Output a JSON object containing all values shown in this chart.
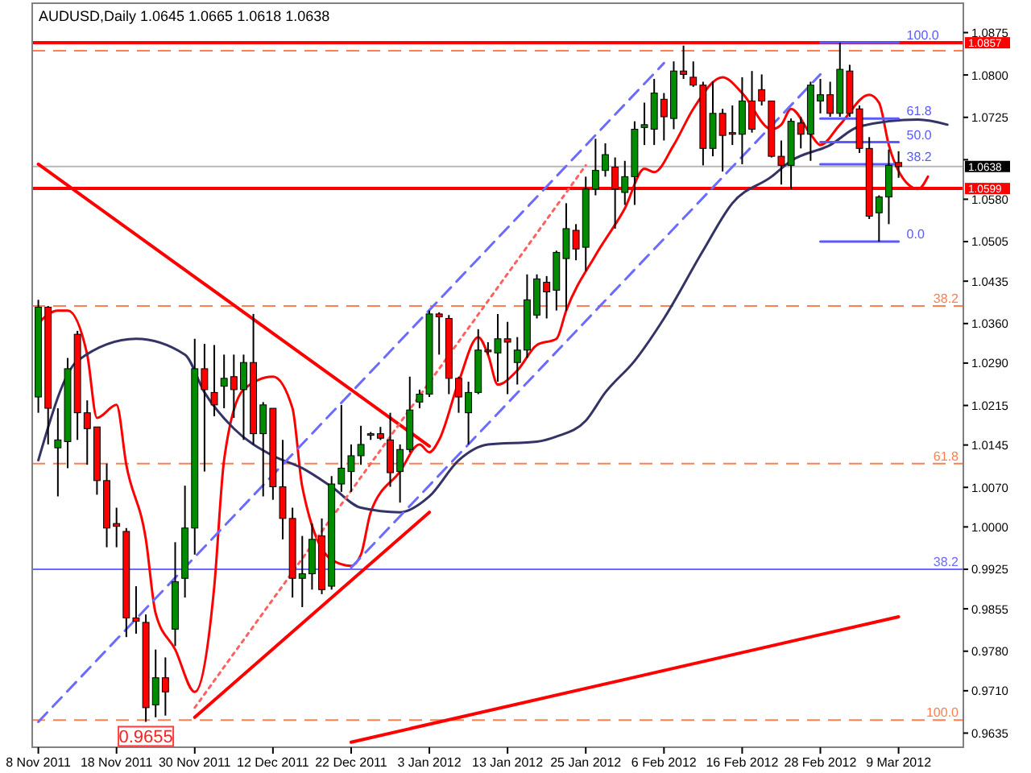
{
  "chart_data": {
    "type": "candlestick",
    "title": "AUDUSD,Daily  1.0645 1.0665 1.0618 1.0638",
    "categories": [
      "8 Nov 2011",
      null,
      null,
      null,
      null,
      null,
      null,
      null,
      "18 Nov 2011",
      null,
      null,
      null,
      null,
      null,
      null,
      null,
      "30 Nov 2011",
      null,
      null,
      null,
      null,
      null,
      null,
      null,
      "12 Dec 2011",
      null,
      null,
      null,
      null,
      null,
      null,
      null,
      "22 Dec 2011",
      null,
      null,
      null,
      null,
      null,
      null,
      null,
      "3 Jan 2012",
      null,
      null,
      null,
      null,
      null,
      null,
      null,
      "13 Jan 2012",
      null,
      null,
      null,
      null,
      null,
      null,
      null,
      "25 Jan 2012",
      null,
      null,
      null,
      null,
      null,
      null,
      null,
      "6 Feb 2012",
      null,
      null,
      null,
      null,
      null,
      null,
      null,
      "16 Feb 2012",
      null,
      null,
      null,
      null,
      null,
      null,
      null,
      "28 Feb 2012",
      null,
      null,
      null,
      null,
      null,
      null,
      null,
      "9 Mar 2012",
      null,
      null,
      null,
      null,
      null,
      null
    ],
    "ohlc": [
      [
        1.023,
        1.0402,
        1.0202,
        1.0389
      ],
      [
        1.0389,
        1.0391,
        1.0146,
        1.021
      ],
      [
        1.014,
        1.021,
        1.0054,
        1.0154
      ],
      [
        1.0151,
        1.0299,
        1.0104,
        1.028
      ],
      [
        1.0341,
        1.0347,
        1.0154,
        1.0202
      ],
      [
        1.0202,
        1.0224,
        1.011,
        1.0174
      ],
      [
        1.0177,
        1.0177,
        1.0057,
        1.0082
      ],
      [
        1.0082,
        1.0112,
        0.9964,
        0.9998
      ],
      [
        1.0006,
        1.0034,
        0.9964,
        1.0001
      ],
      [
        0.9992,
        0.9998,
        0.9805,
        0.9839
      ],
      [
        0.9839,
        0.9895,
        0.9811,
        0.9833
      ],
      [
        0.9831,
        0.9845,
        0.9655,
        0.968
      ],
      [
        0.9685,
        0.9783,
        0.9663,
        0.9733
      ],
      [
        0.9733,
        0.9769,
        0.9666,
        0.9708
      ],
      [
        0.9819,
        0.9973,
        0.9789,
        0.9903
      ],
      [
        0.9909,
        1.0073,
        0.9875,
        0.9998
      ],
      [
        0.9998,
        1.0333,
        0.9951,
        1.028
      ],
      [
        1.028,
        1.0324,
        1.0098,
        1.0243
      ],
      [
        1.0238,
        1.0322,
        1.0196,
        1.0216
      ],
      [
        1.0249,
        1.0305,
        1.021,
        1.0263
      ],
      [
        1.0266,
        1.0305,
        1.0193,
        1.0243
      ],
      [
        1.0243,
        1.0305,
        1.0154,
        1.0291
      ],
      [
        1.0291,
        1.0377,
        1.0146,
        1.0165
      ],
      [
        1.0165,
        1.0221,
        1.0054,
        1.0216
      ],
      [
        1.021,
        1.021,
        1.0048,
        1.0071
      ],
      [
        1.0071,
        1.0154,
        0.9978,
        1.0015
      ],
      [
        1.0015,
        1.0034,
        0.9875,
        0.9909
      ],
      [
        0.9909,
        0.9984,
        0.9858,
        0.9917
      ],
      [
        0.9917,
        1.0006,
        0.9889,
        0.9978
      ],
      [
        0.9984,
        1.0015,
        0.9881,
        0.9889
      ],
      [
        0.9895,
        1.009,
        0.9889,
        1.0076
      ],
      [
        1.0076,
        1.0216,
        1.0062,
        1.0104
      ],
      [
        1.0098,
        1.0146,
        1.0062,
        1.0126
      ],
      [
        1.0126,
        1.0179,
        1.011,
        1.0146
      ],
      [
        1.0163,
        1.0168,
        1.0154,
        1.0165
      ],
      [
        1.0165,
        1.0177,
        1.0154,
        1.0157
      ],
      [
        1.0154,
        1.0202,
        1.0071,
        1.0096
      ],
      [
        1.0098,
        1.0146,
        1.0043,
        1.0137
      ],
      [
        1.0137,
        1.0266,
        1.0132,
        1.0207
      ],
      [
        1.0221,
        1.0243,
        1.021,
        1.0235
      ],
      [
        1.0235,
        1.0383,
        1.023,
        1.0377
      ],
      [
        1.0377,
        1.038,
        1.0305,
        1.0372
      ],
      [
        1.0369,
        1.0375,
        1.0235,
        1.0263
      ],
      [
        1.0263,
        1.0266,
        1.0202,
        1.023
      ],
      [
        1.0202,
        1.0257,
        1.0146,
        1.0238
      ],
      [
        1.0238,
        1.035,
        1.0235,
        1.0313
      ],
      [
        1.0313,
        1.0327,
        1.0305,
        1.031
      ],
      [
        1.0308,
        1.0377,
        1.0257,
        1.0333
      ],
      [
        1.0333,
        1.0363,
        1.0235,
        1.0327
      ],
      [
        1.0291,
        1.0336,
        1.0252,
        1.0313
      ],
      [
        1.0313,
        1.0447,
        1.0299,
        1.0402
      ],
      [
        1.0375,
        1.0447,
        1.0369,
        1.0439
      ],
      [
        1.0433,
        1.0444,
        1.0369,
        1.0416
      ],
      [
        1.0419,
        1.0489,
        1.0383,
        1.0486
      ],
      [
        1.0475,
        1.0573,
        1.0383,
        1.0528
      ],
      [
        1.0525,
        1.0536,
        1.0472,
        1.0492
      ],
      [
        1.0495,
        1.062,
        1.0453,
        1.0598
      ],
      [
        1.0598,
        1.0687,
        1.0587,
        1.0631
      ],
      [
        1.0631,
        1.0679,
        1.062,
        1.0659
      ],
      [
        1.0637,
        1.0654,
        1.0528,
        1.0598
      ],
      [
        1.0592,
        1.0648,
        1.057,
        1.062
      ],
      [
        1.062,
        1.0718,
        1.057,
        1.0704
      ],
      [
        1.0707,
        1.0751,
        1.0676,
        1.0712
      ],
      [
        1.0704,
        1.0793,
        1.0676,
        1.0768
      ],
      [
        1.0757,
        1.0768,
        1.0684,
        1.0726
      ],
      [
        1.0723,
        1.0824,
        1.0704,
        1.0807
      ],
      [
        1.0807,
        1.0852,
        1.0793,
        1.0801
      ],
      [
        1.0796,
        1.0824,
        1.0779,
        1.0782
      ],
      [
        1.0782,
        1.0788,
        1.064,
        1.067
      ],
      [
        1.067,
        1.0788,
        1.0656,
        1.0732
      ],
      [
        1.0732,
        1.074,
        1.0629,
        1.0693
      ],
      [
        1.0698,
        1.0746,
        1.0676,
        1.0695
      ],
      [
        1.0695,
        1.0796,
        1.0642,
        1.0754
      ],
      [
        1.0754,
        1.0807,
        1.0698,
        1.0704
      ],
      [
        1.0774,
        1.0801,
        1.0746,
        1.0754
      ],
      [
        1.0754,
        1.0754,
        1.0654,
        1.0656
      ],
      [
        1.0656,
        1.0684,
        1.0606,
        1.064
      ],
      [
        1.064,
        1.0723,
        1.0598,
        1.0718
      ],
      [
        1.0715,
        1.0726,
        1.067,
        1.0695
      ],
      [
        1.0695,
        1.0788,
        1.0648,
        1.0782
      ],
      [
        1.0754,
        1.0793,
        1.0732,
        1.0765
      ],
      [
        1.0765,
        1.0788,
        1.0726,
        1.0732
      ],
      [
        1.0732,
        1.0857,
        1.0726,
        1.081
      ],
      [
        1.0807,
        1.0818,
        1.0726,
        1.0732
      ],
      [
        1.074,
        1.0746,
        1.0662,
        1.067
      ],
      [
        1.067,
        1.069,
        1.0545,
        1.055
      ],
      [
        1.0556,
        1.0587,
        1.0505,
        1.0584
      ],
      [
        1.0584,
        1.0668,
        1.0536,
        1.064
      ],
      [
        1.0645,
        1.0665,
        1.0618,
        1.0638
      ],
      null,
      null,
      null,
      null,
      null,
      null
    ],
    "series": [
      {
        "type": "line",
        "color": "#ff0000",
        "values": [
          1.0361,
          null,
          1.0383,
          1.0383,
          null,
          1.0305,
          1.0193,
          null,
          1.0216,
          1.011,
          null,
          0.9978,
          0.9847,
          null,
          0.9783,
          null,
          0.9708,
          null,
          0.9895,
          1.0118,
          null,
          1.0243,
          null,
          null,
          1.0266,
          null,
          1.021,
          1.0071,
          null,
          null,
          0.9942,
          null,
          0.9931,
          0.9951,
          1.0026,
          null,
          null,
          1.0098,
          null,
          1.0146,
          1.0132,
          1.0154,
          null,
          1.0257,
          null,
          1.0336,
          1.0305,
          1.0252,
          null,
          1.0277,
          null,
          1.0322,
          null,
          1.0333,
          1.0383,
          null,
          null,
          1.0481,
          null,
          null,
          1.0564,
          null,
          1.0634,
          1.0628,
          null,
          1.0676,
          null,
          1.074,
          null,
          null,
          1.0796,
          null,
          1.0768,
          null,
          null,
          1.0704,
          1.0712,
          1.074,
          null,
          1.0695,
          1.0676,
          null,
          1.0712,
          null,
          null,
          1.0765,
          1.0751,
          1.0676,
          null,
          1.0606,
          1.0598,
          1.062,
          null,
          null,
          null
        ]
      },
      {
        "type": "line",
        "color": "#333366",
        "values": [
          1.0118,
          null,
          null,
          null,
          1.0294,
          null,
          null,
          null,
          null,
          null,
          1.0333,
          null,
          null,
          null,
          null,
          1.0305,
          null,
          1.0238,
          null,
          null,
          1.0174,
          null,
          null,
          null,
          1.0126,
          null,
          null,
          1.0104,
          null,
          null,
          1.0071,
          null,
          null,
          1.0034,
          null,
          null,
          null,
          1.0026,
          null,
          null,
          1.0054,
          null,
          null,
          1.0118,
          null,
          null,
          1.0146,
          null,
          null,
          null,
          null,
          1.0151,
          null,
          1.016,
          null,
          null,
          1.0188,
          null,
          1.0238,
          null,
          null,
          1.0294,
          null,
          null,
          1.0369,
          null,
          null,
          null,
          1.0489,
          null,
          null,
          1.0573,
          null,
          null,
          null,
          1.062,
          null,
          1.0648,
          null,
          null,
          null,
          1.0676,
          null,
          null,
          1.0709,
          null,
          null,
          null,
          null,
          null,
          1.0721,
          null,
          null,
          1.0712,
          null
        ]
      },
      {
        "type": "line",
        "color": "#ff0000",
        "x": [
          "8 Nov 2011",
          "3 Jan 2012"
        ],
        "values": [
          1.0642,
          1.0143
        ]
      },
      {
        "type": "line",
        "color": "#ff0000",
        "x": [
          "30 Nov 2011",
          "3 Jan 2012"
        ],
        "values": [
          0.9663,
          1.0026
        ]
      },
      {
        "type": "line",
        "color": "#ff0000",
        "x": [
          "22 Dec 2011",
          "9 Mar 2012"
        ],
        "values": [
          0.9619,
          0.9841
        ]
      },
      {
        "type": "line",
        "color": "#6b6bff",
        "line_style": "dashed",
        "x": [
          "8 Nov 2011",
          "6 Feb 2012"
        ],
        "values": [
          0.9655,
          1.0821
        ]
      },
      {
        "type": "line",
        "color": "#6b6bff",
        "line_style": "dashed",
        "x": [
          "22 Dec 2011",
          "28 Feb 2012"
        ],
        "values": [
          0.9928,
          1.0801
        ]
      },
      {
        "type": "line",
        "color": "#ff6060",
        "line_style": "dotted",
        "x": [
          "30 Nov 2011",
          "25 Jan 2012"
        ],
        "values": [
          0.968,
          1.064
        ]
      },
      {
        "type": "line",
        "color": "#5a5aff",
        "x": [
          "28 Feb 2012",
          "9 Mar 2012"
        ],
        "values": [
          1.0857,
          1.0857
        ]
      },
      {
        "type": "line",
        "color": "#5a5aff",
        "x": [
          "28 Feb 2012",
          "9 Mar 2012"
        ],
        "values": [
          1.0723,
          1.0723
        ]
      },
      {
        "type": "line",
        "color": "#5a5aff",
        "x": [
          "28 Feb 2012",
          "9 Mar 2012"
        ],
        "values": [
          1.0681,
          1.0681
        ]
      },
      {
        "type": "line",
        "color": "#5a5aff",
        "x": [
          "28 Feb 2012",
          "9 Mar 2012"
        ],
        "values": [
          1.0642,
          1.0642
        ]
      },
      {
        "type": "line",
        "color": "#5a5aff",
        "x": [
          "28 Feb 2012",
          "9 Mar 2012"
        ],
        "values": [
          1.0505,
          1.0505
        ]
      }
    ],
    "ylim": [
      0.961,
      1.0927
    ],
    "yticks": [
      0.9635,
      {
        "value": 0.971,
        "label": "0.9710"
      },
      {
        "value": 0.978,
        "label": "0.9780"
      },
      0.9855,
      0.9925,
      {
        "value": 1,
        "label": "1.0000"
      },
      {
        "value": 1.007,
        "label": "1.0070"
      },
      1.0145,
      1.0215,
      {
        "value": 1.029,
        "label": "1.0290"
      },
      {
        "value": 1.036,
        "label": "1.0360"
      },
      1.0435,
      1.0505,
      {
        "value": 1.058,
        "label": "1.0580"
      },
      {
        "value": 1.065,
        "label": null
      },
      1.0725,
      {
        "value": 1.08,
        "label": "1.0800"
      },
      1.0875
    ],
    "ref_lines": [
      {
        "axis": "y",
        "value": 1.0843,
        "label": null,
        "color": "#ff7f50",
        "line_style": "dashed"
      },
      {
        "axis": "y",
        "value": 1.0391,
        "color": "#ff7f50",
        "line_style": "dashed"
      },
      {
        "axis": "y",
        "value": 1.0112,
        "color": "#ff7f50",
        "line_style": "dashed"
      },
      {
        "axis": "y",
        "value": 0.9658,
        "color": "#ff7f50",
        "line_style": "dashed"
      },
      {
        "axis": "y",
        "value": 0.9925,
        "color": "#6b6bff",
        "line_style": "solid"
      },
      {
        "axis": "y",
        "value": 1.0638,
        "label": "1.0638",
        "color": "#b8b8b8",
        "line_style": "solid"
      },
      {
        "axis": "y",
        "value": 1.0857,
        "label": "1.0857",
        "color": "#ff0000",
        "line_style": "solid"
      },
      {
        "axis": "y",
        "value": 1.0599,
        "label": "1.0599",
        "color": "#ff0000",
        "line_style": "solid"
      }
    ],
    "annotations": [
      {
        "text": "0.9655",
        "y": 0.9655
      },
      {
        "text": "38.2",
        "y": 1.0391
      },
      {
        "text": "61.8",
        "y": 1.0112
      },
      {
        "text": "100.0",
        "y": 0.9658
      },
      {
        "text": "38.2",
        "y": 0.9925
      },
      {
        "text": "100.0",
        "x": "9 Mar 2012",
        "y": 1.0857
      },
      {
        "text": "61.8",
        "x": "9 Mar 2012",
        "y": 1.0723
      },
      {
        "text": "50.0",
        "x": "9 Mar 2012",
        "y": 1.0681
      },
      {
        "text": "38.2",
        "x": "9 Mar 2012",
        "y": 1.0642
      },
      {
        "text": "0.0",
        "x": "9 Mar 2012",
        "y": 1.0505
      }
    ],
    "grid": false
  }
}
